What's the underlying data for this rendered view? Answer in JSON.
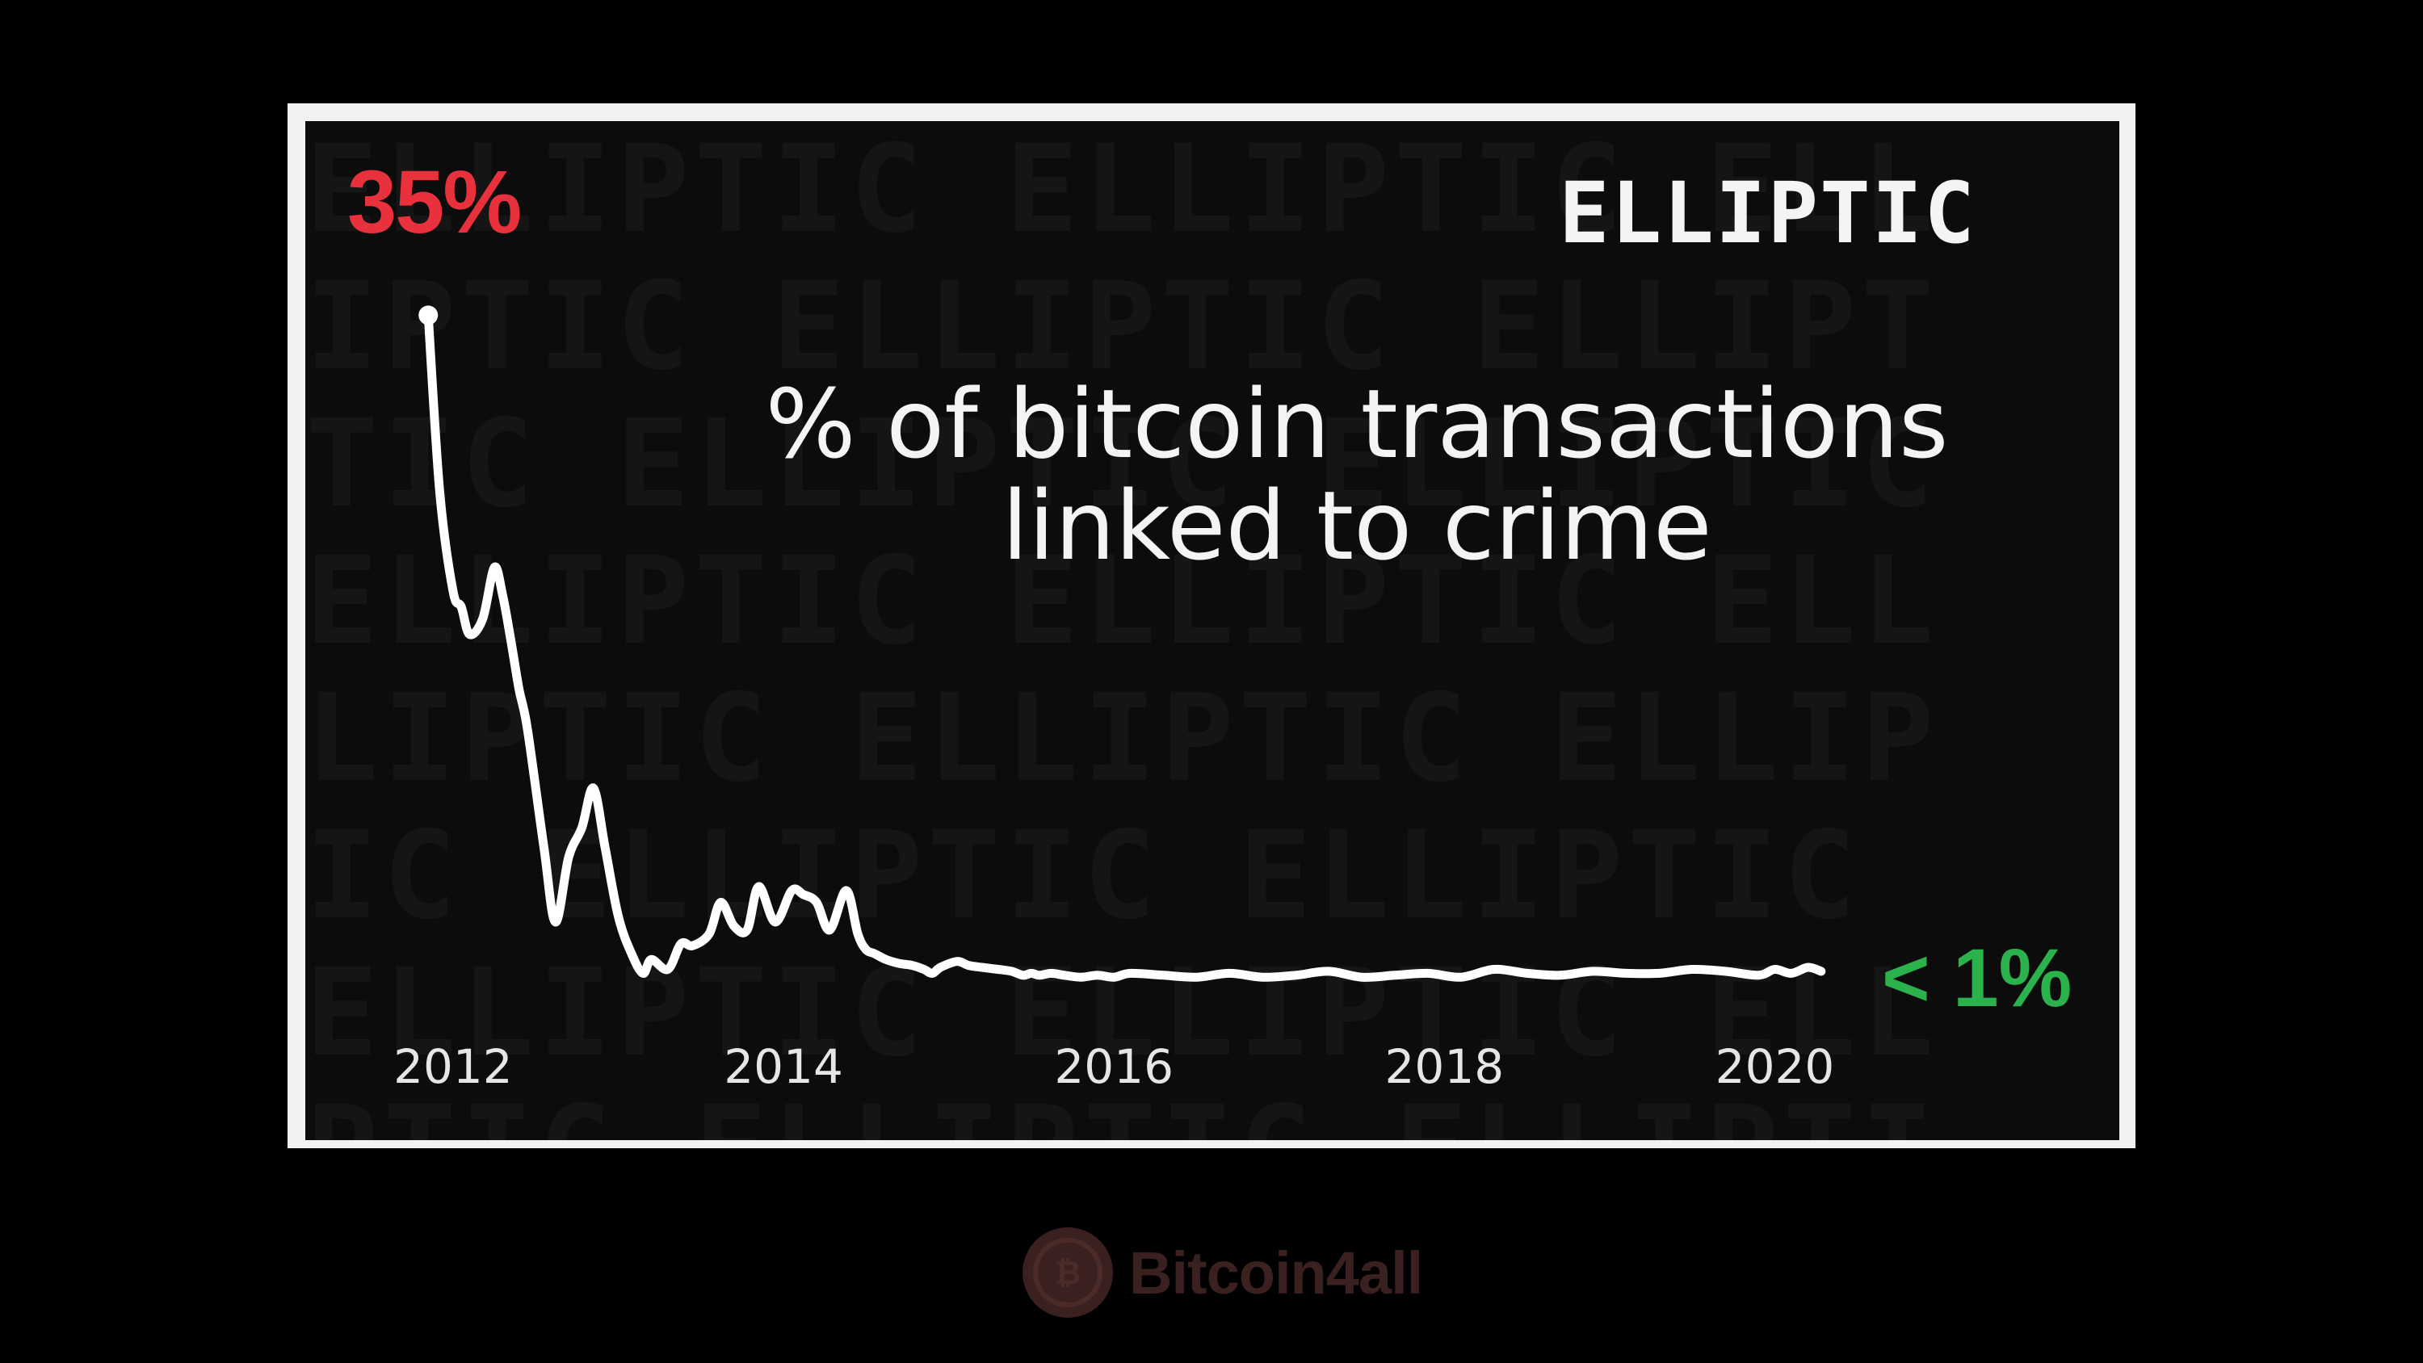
{
  "chart_data": {
    "type": "line",
    "title_lines": [
      "% of bitcoin transactions",
      "linked to crime"
    ],
    "brand": "ELLIPTIC",
    "start_label": "35%",
    "end_label": "< 1%",
    "x_tick_labels": [
      "2012",
      "2014",
      "2016",
      "2018",
      "2020"
    ],
    "x_ticks": [
      2012,
      2014,
      2016,
      2018,
      2020
    ],
    "xlim": [
      2011.8,
      2020.55
    ],
    "ylim": [
      0,
      35
    ],
    "grid": false,
    "legend": "none",
    "series": [
      {
        "x": [
          2011.85,
          2011.92,
          2012.0,
          2012.05,
          2012.1,
          2012.18,
          2012.25,
          2012.3,
          2012.35,
          2012.4,
          2012.45,
          2012.55,
          2012.62,
          2012.7,
          2012.78,
          2012.85,
          2012.92,
          2013.0,
          2013.08,
          2013.15,
          2013.2,
          2013.3,
          2013.38,
          2013.45,
          2013.55,
          2013.62,
          2013.7,
          2013.78,
          2013.85,
          2013.95,
          2014.05,
          2014.12,
          2014.2,
          2014.28,
          2014.38,
          2014.45,
          2014.5,
          2014.55,
          2014.62,
          2014.7,
          2014.78,
          2014.85,
          2014.9,
          2014.95,
          2015.05,
          2015.12,
          2015.2,
          2015.3,
          2015.38,
          2015.45,
          2015.5,
          2015.55,
          2015.62,
          2015.7,
          2015.8,
          2015.9,
          2016.0,
          2016.1,
          2016.3,
          2016.5,
          2016.7,
          2016.9,
          2017.1,
          2017.3,
          2017.5,
          2017.7,
          2017.9,
          2018.1,
          2018.3,
          2018.5,
          2018.7,
          2018.9,
          2019.1,
          2019.3,
          2019.5,
          2019.7,
          2019.9,
          2020.0,
          2020.1,
          2020.2,
          2020.28
        ],
        "y": [
          34.0,
          25.0,
          20.0,
          19.2,
          17.8,
          18.6,
          21.2,
          19.8,
          17.5,
          15.0,
          13.0,
          7.0,
          3.2,
          6.5,
          8.0,
          10.0,
          7.0,
          3.5,
          1.6,
          0.6,
          1.3,
          0.8,
          2.1,
          2.0,
          2.6,
          4.2,
          3.0,
          2.8,
          5.0,
          3.2,
          4.8,
          4.6,
          4.2,
          2.8,
          4.8,
          2.6,
          1.8,
          1.6,
          1.3,
          1.1,
          1.0,
          0.8,
          0.6,
          0.9,
          1.2,
          1.0,
          0.9,
          0.8,
          0.7,
          0.5,
          0.6,
          0.5,
          0.6,
          0.5,
          0.4,
          0.5,
          0.4,
          0.6,
          0.5,
          0.4,
          0.6,
          0.4,
          0.5,
          0.7,
          0.4,
          0.5,
          0.6,
          0.4,
          0.8,
          0.6,
          0.5,
          0.7,
          0.6,
          0.6,
          0.8,
          0.7,
          0.5,
          0.8,
          0.6,
          0.9,
          0.7
        ]
      }
    ],
    "colors": {
      "line": "#ffffff",
      "start_label": "#e8313c",
      "end_label": "#2bb24c",
      "background": "#0c0c0c"
    }
  },
  "watermark": {
    "text": "Bitcoin4all",
    "icon": "bitcoin4all-logo-icon",
    "color": "#3a2120"
  }
}
